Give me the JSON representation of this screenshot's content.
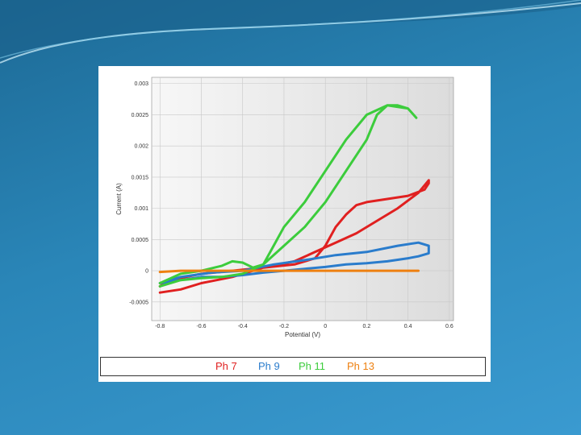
{
  "chart_data": {
    "type": "line",
    "xlabel": "Potential (V)",
    "ylabel": "Current (A)",
    "xlim": [
      -0.84,
      0.62
    ],
    "ylim": [
      -0.0008,
      0.0031
    ],
    "x_ticks": [
      -0.8,
      -0.6,
      -0.4,
      -0.2,
      0,
      0.2,
      0.4,
      0.6
    ],
    "x_tick_labels": [
      "-0.8",
      "-0.6",
      "-0.4",
      "-0.2",
      "0",
      "0.2",
      "0.4",
      "0.6"
    ],
    "y_ticks": [
      -0.0005,
      0,
      0.0005,
      0.001,
      0.0015,
      0.002,
      0.0025,
      0.003
    ],
    "y_tick_labels": [
      "-0.0005",
      "0",
      "0.0005",
      "0.001",
      "0.0015",
      "0.002",
      "0.0025",
      "0.003"
    ],
    "grid": true,
    "legend_position": "bottom",
    "legend": [
      {
        "label": "Ph 7",
        "color": "#e02020"
      },
      {
        "label": "Ph 9",
        "color": "#2a7ccc"
      },
      {
        "label": "Ph 11",
        "color": "#3ccc3c"
      },
      {
        "label": "Ph 13",
        "color": "#ee8010"
      }
    ],
    "series": [
      {
        "color": "#e02020",
        "x": [
          -0.8,
          -0.7,
          -0.6,
          -0.45,
          -0.3,
          -0.15,
          -0.05,
          0.0,
          0.05,
          0.1,
          0.15,
          0.2,
          0.3,
          0.4,
          0.48,
          0.5,
          0.5,
          0.45,
          0.35,
          0.25,
          0.15,
          0.05,
          -0.05,
          -0.15,
          -0.3,
          -0.45,
          -0.6,
          -0.75,
          -0.8
        ],
        "y": [
          -0.00035,
          -0.0003,
          -0.0002,
          -0.0001,
          5e-05,
          0.0001,
          0.0002,
          0.0004,
          0.0007,
          0.0009,
          0.00105,
          0.0011,
          0.00115,
          0.0012,
          0.0013,
          0.0014,
          0.00145,
          0.00125,
          0.001,
          0.0008,
          0.0006,
          0.00045,
          0.0003,
          0.00015,
          5e-05,
          0.0,
          -5e-05,
          -0.00015,
          -0.00025
        ]
      },
      {
        "color": "#2a7ccc",
        "x": [
          -0.8,
          -0.7,
          -0.6,
          -0.5,
          -0.4,
          -0.3,
          -0.2,
          -0.1,
          0.0,
          0.1,
          0.2,
          0.3,
          0.4,
          0.45,
          0.5,
          0.5,
          0.45,
          0.35,
          0.2,
          0.05,
          -0.1,
          -0.25,
          -0.4,
          -0.55,
          -0.7,
          -0.8
        ],
        "y": [
          -0.0002,
          -0.00015,
          -0.0001,
          -0.0001,
          -7e-05,
          -3e-05,
          0.0,
          3e-05,
          6e-05,
          0.0001,
          0.00012,
          0.00015,
          0.0002,
          0.00023,
          0.00028,
          0.0004,
          0.00045,
          0.0004,
          0.0003,
          0.00025,
          0.00017,
          0.0001,
          0.0,
          -3e-05,
          -0.0001,
          -0.0002
        ]
      },
      {
        "color": "#3ccc3c",
        "x": [
          -0.8,
          -0.7,
          -0.6,
          -0.5,
          -0.45,
          -0.4,
          -0.35,
          -0.3,
          -0.2,
          -0.1,
          0.0,
          0.1,
          0.2,
          0.25,
          0.3,
          0.35,
          0.4,
          0.44,
          0.44,
          0.4,
          0.3,
          0.2,
          0.1,
          0.0,
          -0.1,
          -0.2,
          -0.25,
          -0.3,
          -0.4,
          -0.5,
          -0.6,
          -0.7,
          -0.8
        ],
        "y": [
          -0.0002,
          -5e-05,
          0.0,
          8e-05,
          0.00015,
          0.00013,
          5e-05,
          0.0001,
          0.0004,
          0.0007,
          0.0011,
          0.0016,
          0.0021,
          0.0025,
          0.00265,
          0.00265,
          0.0026,
          0.00245,
          0.00245,
          0.0026,
          0.00265,
          0.0025,
          0.0021,
          0.0016,
          0.0011,
          0.0007,
          0.0004,
          0.0001,
          -5e-05,
          -0.0001,
          -0.00012,
          -0.00015,
          -0.00025
        ]
      },
      {
        "color": "#ee8010",
        "x": [
          -0.8,
          -0.7,
          -0.6,
          -0.4,
          -0.2,
          0.0,
          0.2,
          0.4,
          0.45
        ],
        "y": [
          -2e-05,
          0.0,
          0.0,
          0.0,
          0.0,
          0.0,
          0.0,
          0.0,
          0.0
        ]
      }
    ]
  }
}
